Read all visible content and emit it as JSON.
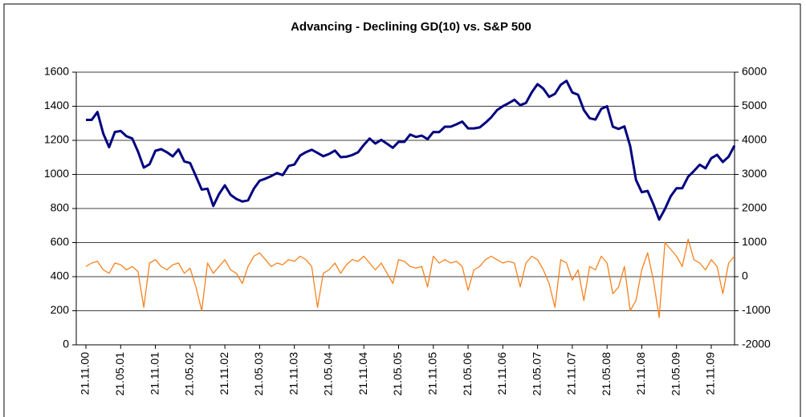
{
  "chart_data": {
    "type": "line",
    "title": "Advancing - Declining GD(10) vs. S&P 500",
    "x": [
      "21.11.00",
      "21.12.00",
      "21.01.01",
      "21.02.01",
      "21.03.01",
      "21.04.01",
      "21.05.01",
      "21.06.01",
      "21.07.01",
      "21.08.01",
      "21.09.01",
      "21.10.01",
      "21.11.01",
      "21.12.01",
      "21.01.02",
      "21.02.02",
      "21.03.02",
      "21.04.02",
      "21.05.02",
      "21.06.02",
      "21.07.02",
      "21.08.02",
      "21.09.02",
      "21.10.02",
      "21.11.02",
      "21.12.02",
      "21.01.03",
      "21.02.03",
      "21.03.03",
      "21.04.03",
      "21.05.03",
      "21.06.03",
      "21.07.03",
      "21.08.03",
      "21.09.03",
      "21.10.03",
      "21.11.03",
      "21.12.03",
      "21.01.04",
      "21.02.04",
      "21.03.04",
      "21.04.04",
      "21.05.04",
      "21.06.04",
      "21.07.04",
      "21.08.04",
      "21.09.04",
      "21.10.04",
      "21.11.04",
      "21.12.04",
      "21.01.05",
      "21.02.05",
      "21.03.05",
      "21.04.05",
      "21.05.05",
      "21.06.05",
      "21.07.05",
      "21.08.05",
      "21.09.05",
      "21.10.05",
      "21.11.05",
      "21.12.05",
      "21.01.06",
      "21.02.06",
      "21.03.06",
      "21.04.06",
      "21.05.06",
      "21.06.06",
      "21.07.06",
      "21.08.06",
      "21.09.06",
      "21.10.06",
      "21.11.06",
      "21.12.06",
      "21.01.07",
      "21.02.07",
      "21.03.07",
      "21.04.07",
      "21.05.07",
      "21.06.07",
      "21.07.07",
      "21.08.07",
      "21.09.07",
      "21.10.07",
      "21.11.07",
      "21.12.07",
      "21.01.08",
      "21.02.08",
      "21.03.08",
      "21.04.08",
      "21.05.08",
      "21.06.08",
      "21.07.08",
      "21.08.08",
      "21.09.08",
      "21.10.08",
      "21.11.08",
      "21.12.08",
      "21.01.09",
      "21.02.09",
      "21.03.09",
      "21.04.09",
      "21.05.09",
      "21.06.09",
      "21.07.09",
      "21.08.09",
      "21.09.09",
      "21.10.09",
      "21.11.09",
      "21.12.09",
      "21.01.10",
      "21.02.10",
      "21.03.10"
    ],
    "xticks": [
      "21.11.00",
      "21.05.01",
      "21.11.01",
      "21.05.02",
      "21.11.02",
      "21.05.03",
      "21.11.03",
      "21.05.04",
      "21.11.04",
      "21.05.05",
      "21.11.05",
      "21.05.06",
      "21.11.06",
      "21.05.07",
      "21.11.07",
      "21.05.08",
      "21.11.08",
      "21.05.09",
      "21.11.09"
    ],
    "series": [
      {
        "color": "#f7821e",
        "axis": "y2",
        "values": [
          300,
          400,
          450,
          200,
          100,
          400,
          350,
          200,
          300,
          150,
          -900,
          400,
          500,
          300,
          200,
          350,
          400,
          100,
          250,
          -300,
          -1000,
          400,
          100,
          300,
          500,
          200,
          100,
          -200,
          300,
          600,
          700,
          500,
          300,
          400,
          350,
          500,
          450,
          600,
          500,
          300,
          -900,
          100,
          200,
          400,
          100,
          350,
          500,
          450,
          600,
          400,
          200,
          400,
          100,
          -200,
          500,
          450,
          300,
          250,
          300,
          -300,
          600,
          400,
          500,
          400,
          450,
          300,
          -400,
          200,
          300,
          500,
          600,
          500,
          400,
          450,
          400,
          -300,
          400,
          600,
          500,
          200,
          -200,
          -900,
          500,
          400,
          -100,
          200,
          -700,
          300,
          200,
          600,
          400,
          -500,
          -300,
          300,
          -1000,
          -700,
          200,
          700,
          -100,
          -1200,
          1000,
          800,
          600,
          300,
          1100,
          500,
          400,
          200,
          500,
          300,
          -500,
          400,
          600
        ]
      },
      {
        "color": "#000080",
        "values": [
          1320,
          1320,
          1366,
          1240,
          1160,
          1249,
          1255,
          1224,
          1211,
          1134,
          1040,
          1060,
          1139,
          1148,
          1130,
          1106,
          1147,
          1076,
          1067,
          990,
          911,
          916,
          815,
          885,
          936,
          880,
          856,
          841,
          848,
          916,
          963,
          975,
          990,
          1008,
          996,
          1050,
          1058,
          1111,
          1131,
          1145,
          1126,
          1107,
          1120,
          1140,
          1101,
          1104,
          1114,
          1130,
          1173,
          1211,
          1181,
          1203,
          1180,
          1156,
          1191,
          1191,
          1234,
          1220,
          1228,
          1207,
          1249,
          1248,
          1280,
          1280,
          1294,
          1310,
          1270,
          1270,
          1276,
          1303,
          1335,
          1377,
          1400,
          1418,
          1438,
          1406,
          1420,
          1482,
          1530,
          1503,
          1455,
          1473,
          1526,
          1549,
          1481,
          1468,
          1378,
          1330,
          1322,
          1385,
          1400,
          1280,
          1267,
          1282,
          1166,
          968,
          896,
          903,
          825,
          735,
          797,
          872,
          919,
          919,
          987,
          1020,
          1057,
          1036,
          1095,
          1115,
          1073,
          1104,
          1169
        ]
      }
    ],
    "ylim": [
      0,
      1600
    ],
    "yticks": [
      0,
      200,
      400,
      600,
      800,
      1000,
      1200,
      1400,
      1600
    ],
    "y2lim": [
      -2000,
      6000
    ],
    "y2ticks": [
      -2000,
      -1000,
      0,
      1000,
      2000,
      3000,
      4000,
      5000,
      6000
    ],
    "grid": true
  }
}
